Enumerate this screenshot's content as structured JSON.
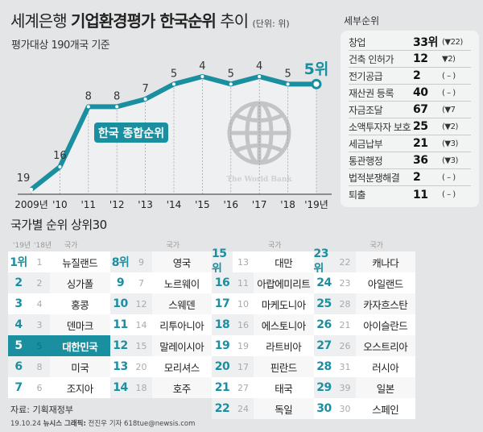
{
  "title": {
    "part1": "세계은행 ",
    "part2": "기업환경평가 한국순위",
    "part3": " 추이",
    "unit": "(단위: 위)"
  },
  "subtitle": "평가대상 190개국 기준",
  "chart_data": {
    "type": "line",
    "title": "세계은행 기업환경평가 한국순위 추이",
    "series_label": "한국 종합순위",
    "x": [
      "2009년",
      "'10",
      "'11",
      "'12",
      "'13",
      "'14",
      "'15",
      "'16",
      "'17",
      "'18",
      "'19년"
    ],
    "values": [
      19,
      16,
      8,
      8,
      7,
      5,
      4,
      5,
      4,
      5,
      5
    ],
    "last_label": "5위",
    "y_inverted": true,
    "watermark": "The World Bank"
  },
  "detail": {
    "label": "세부순위",
    "rows": [
      {
        "name": "창업",
        "value": "33위",
        "change": "(▼22)"
      },
      {
        "name": "건축 인허가",
        "value": "12",
        "change": "▼2)"
      },
      {
        "name": "전기공급",
        "value": "2",
        "change": "( – )"
      },
      {
        "name": "재산권 등록",
        "value": "40",
        "change": "( – )"
      },
      {
        "name": "자금조달",
        "value": "67",
        "change": "(▼7"
      },
      {
        "name": "소액투자자 보호",
        "value": "25",
        "change": "(▼2)"
      },
      {
        "name": "세금납부",
        "value": "21",
        "change": "(▼3)"
      },
      {
        "name": "통관행정",
        "value": "36",
        "change": "(▼3)"
      },
      {
        "name": "법적분쟁해결",
        "value": "2",
        "change": "( – )"
      },
      {
        "name": "퇴출",
        "value": "11",
        "change": "( – )"
      }
    ]
  },
  "ranking": {
    "title": "국가별 순위 상위30",
    "col_19": "'19년",
    "col_18": "'18년",
    "col_country": "국가",
    "groups": [
      [
        [
          "1위",
          "1",
          "뉴질랜드"
        ],
        [
          "2",
          "2",
          "싱가폴"
        ],
        [
          "3",
          "4",
          "홍콩"
        ],
        [
          "4",
          "3",
          "덴마크"
        ],
        [
          "5",
          "5",
          "대한민국"
        ],
        [
          "6",
          "8",
          "미국"
        ],
        [
          "7",
          "6",
          "조지아"
        ]
      ],
      [
        [
          "8위",
          "9",
          "영국"
        ],
        [
          "9",
          "7",
          "노르웨이"
        ],
        [
          "10",
          "12",
          "스웨덴"
        ],
        [
          "11",
          "14",
          "리투아니아"
        ],
        [
          "12",
          "15",
          "말레이시아"
        ],
        [
          "13",
          "20",
          "모리셔스"
        ],
        [
          "14",
          "18",
          "호주"
        ]
      ],
      [
        [
          "15위",
          "13",
          "대만"
        ],
        [
          "16",
          "11",
          "아랍에미리트"
        ],
        [
          "17",
          "10",
          "마케도니아"
        ],
        [
          "18",
          "16",
          "에스토니아"
        ],
        [
          "19",
          "19",
          "라트비아"
        ],
        [
          "20",
          "17",
          "핀란드"
        ],
        [
          "21",
          "27",
          "태국"
        ],
        [
          "22",
          "24",
          "독일"
        ]
      ],
      [
        [
          "23위",
          "22",
          "캐나다"
        ],
        [
          "24",
          "23",
          "아일랜드"
        ],
        [
          "25",
          "28",
          "카자흐스탄"
        ],
        [
          "26",
          "21",
          "아이슬란드"
        ],
        [
          "27",
          "26",
          "오스트리아"
        ],
        [
          "28",
          "31",
          "러시아"
        ],
        [
          "29",
          "39",
          "일본"
        ],
        [
          "30",
          "30",
          "스페인"
        ]
      ]
    ]
  },
  "source": "자료: 기획재정부",
  "credit": {
    "date": "19.10.24",
    "agency": "뉴시스 그래픽:",
    "author": "전진우 기자 618tue@newsis.com"
  },
  "colors": {
    "accent": "#1a8fa0",
    "down": "#d0101a"
  }
}
